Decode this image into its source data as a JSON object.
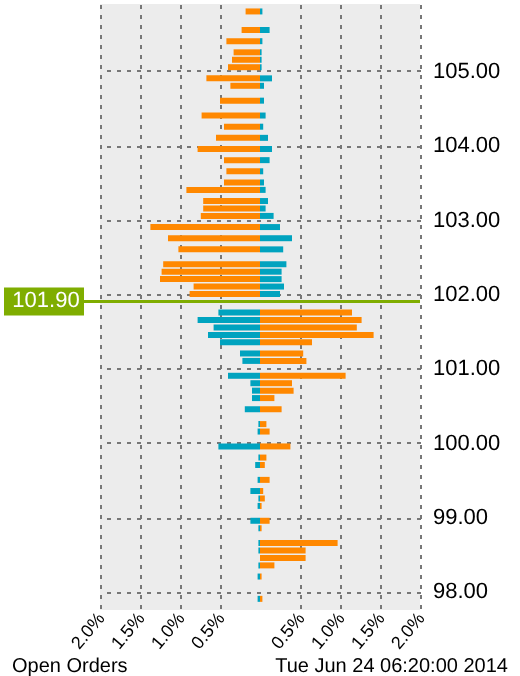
{
  "chart_data": {
    "type": "bar",
    "orientation": "horizontal",
    "x": [
      105.8,
      105.55,
      105.4,
      105.25,
      105.15,
      105.05,
      104.9,
      104.8,
      104.6,
      104.4,
      104.25,
      104.1,
      103.95,
      103.8,
      103.65,
      103.5,
      103.4,
      103.25,
      103.15,
      103.05,
      102.9,
      102.75,
      102.6,
      102.4,
      102.3,
      102.2,
      102.1,
      102.0,
      101.75,
      101.65,
      101.55,
      101.45,
      101.35,
      101.2,
      101.1,
      100.9,
      100.8,
      100.7,
      100.6,
      100.45,
      100.25,
      100.15,
      99.95,
      99.8,
      99.7,
      99.5,
      99.35,
      99.25,
      99.15,
      98.95,
      98.85,
      98.65,
      98.55,
      98.45,
      98.35,
      98.2,
      97.9
    ],
    "series": [
      {
        "color": "#ff8800",
        "values": [
          -0.18,
          -0.23,
          -0.42,
          -0.33,
          -0.35,
          -0.4,
          -0.67,
          -0.37,
          -0.5,
          -0.73,
          -0.45,
          -0.55,
          -0.78,
          -0.45,
          -0.42,
          -0.45,
          -0.92,
          -0.71,
          -0.71,
          -0.74,
          -1.37,
          -1.15,
          -1.02,
          -1.21,
          -1.23,
          -1.25,
          -0.83,
          -0.88,
          1.15,
          1.27,
          1.21,
          1.42,
          0.65,
          0.54,
          0.58,
          1.07,
          0.4,
          0.42,
          0.18,
          0.27,
          0.08,
          0.12,
          0.38,
          0.08,
          0.06,
          0.12,
          0.04,
          0.06,
          0.02,
          0.12,
          0.02,
          0.97,
          0.57,
          0.57,
          0.18,
          0.02,
          0.03
        ]
      },
      {
        "color": "#00a3bf",
        "values": [
          0.03,
          0.12,
          0.03,
          0.02,
          0.02,
          0.02,
          0.15,
          0.05,
          0.05,
          0.07,
          0.04,
          0.1,
          0.15,
          0.12,
          0.04,
          0.05,
          0.07,
          0.1,
          0.07,
          0.17,
          0.25,
          0.4,
          0.29,
          0.33,
          0.27,
          0.27,
          0.3,
          0.25,
          -0.52,
          -0.78,
          -0.58,
          -0.65,
          -0.5,
          -0.25,
          -0.22,
          -0.4,
          -0.12,
          -0.1,
          -0.1,
          -0.19,
          -0.02,
          -0.03,
          -0.52,
          -0.02,
          -0.06,
          -0.03,
          -0.12,
          -0.02,
          -0.03,
          -0.12,
          -0.02,
          -0.02,
          -0.02,
          null,
          -0.02,
          -0.03,
          -0.03
        ]
      }
    ],
    "xlim": [
      -2.0,
      2.0
    ],
    "xticks": [
      {
        "value": -2.0,
        "label": "2.0%"
      },
      {
        "value": -1.5,
        "label": "1.5%"
      },
      {
        "value": -1.0,
        "label": "1.0%"
      },
      {
        "value": -0.5,
        "label": "0.5%"
      },
      {
        "value": 0.5,
        "label": "0.5%"
      },
      {
        "value": 1.0,
        "label": "1.0%"
      },
      {
        "value": 1.5,
        "label": "1.5%"
      },
      {
        "value": 2.0,
        "label": "2.0%"
      }
    ],
    "ylim": [
      97.75,
      105.9
    ],
    "yticks": [
      {
        "value": 98,
        "label": "98.00"
      },
      {
        "value": 99,
        "label": "99.00"
      },
      {
        "value": 100,
        "label": "100.00"
      },
      {
        "value": 101,
        "label": "101.00"
      },
      {
        "value": 102,
        "label": "102.00"
      },
      {
        "value": 103,
        "label": "103.00"
      },
      {
        "value": 104,
        "label": "104.00"
      },
      {
        "value": 105,
        "label": "105.00"
      }
    ],
    "ref_lines": [
      {
        "axis": "y",
        "value": 101.9,
        "label": "101.90",
        "color": "#7fad00"
      }
    ],
    "grid": true,
    "stacked": true,
    "annotations": [
      "Open Orders",
      "Tue Jun 24 06:20:00 2014"
    ]
  }
}
